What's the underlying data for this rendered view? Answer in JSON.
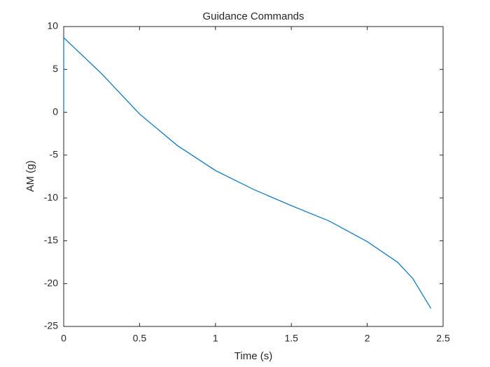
{
  "chart_data": {
    "type": "line",
    "title": "Guidance Commands",
    "x_label": "Time (s)",
    "y_label": "AM (g)",
    "x": [
      0,
      0,
      0.25,
      0.5,
      0.75,
      1.0,
      1.25,
      1.5,
      1.75,
      2.0,
      2.2,
      2.3,
      2.42
    ],
    "series": [
      {
        "color": "#0072bd",
        "values": [
          0,
          8.7,
          4.5,
          -0.2,
          -3.9,
          -6.8,
          -9.0,
          -10.9,
          -12.7,
          -15.1,
          -17.5,
          -19.4,
          -22.9
        ]
      }
    ],
    "xlim": [
      0,
      2.5
    ],
    "xticks": [
      0,
      0.5,
      1,
      1.5,
      2,
      2.5
    ],
    "ylim": [
      -25,
      10
    ],
    "yticks": [
      -25,
      -20,
      -15,
      -10,
      -5,
      0,
      5,
      10
    ],
    "grid": false
  }
}
